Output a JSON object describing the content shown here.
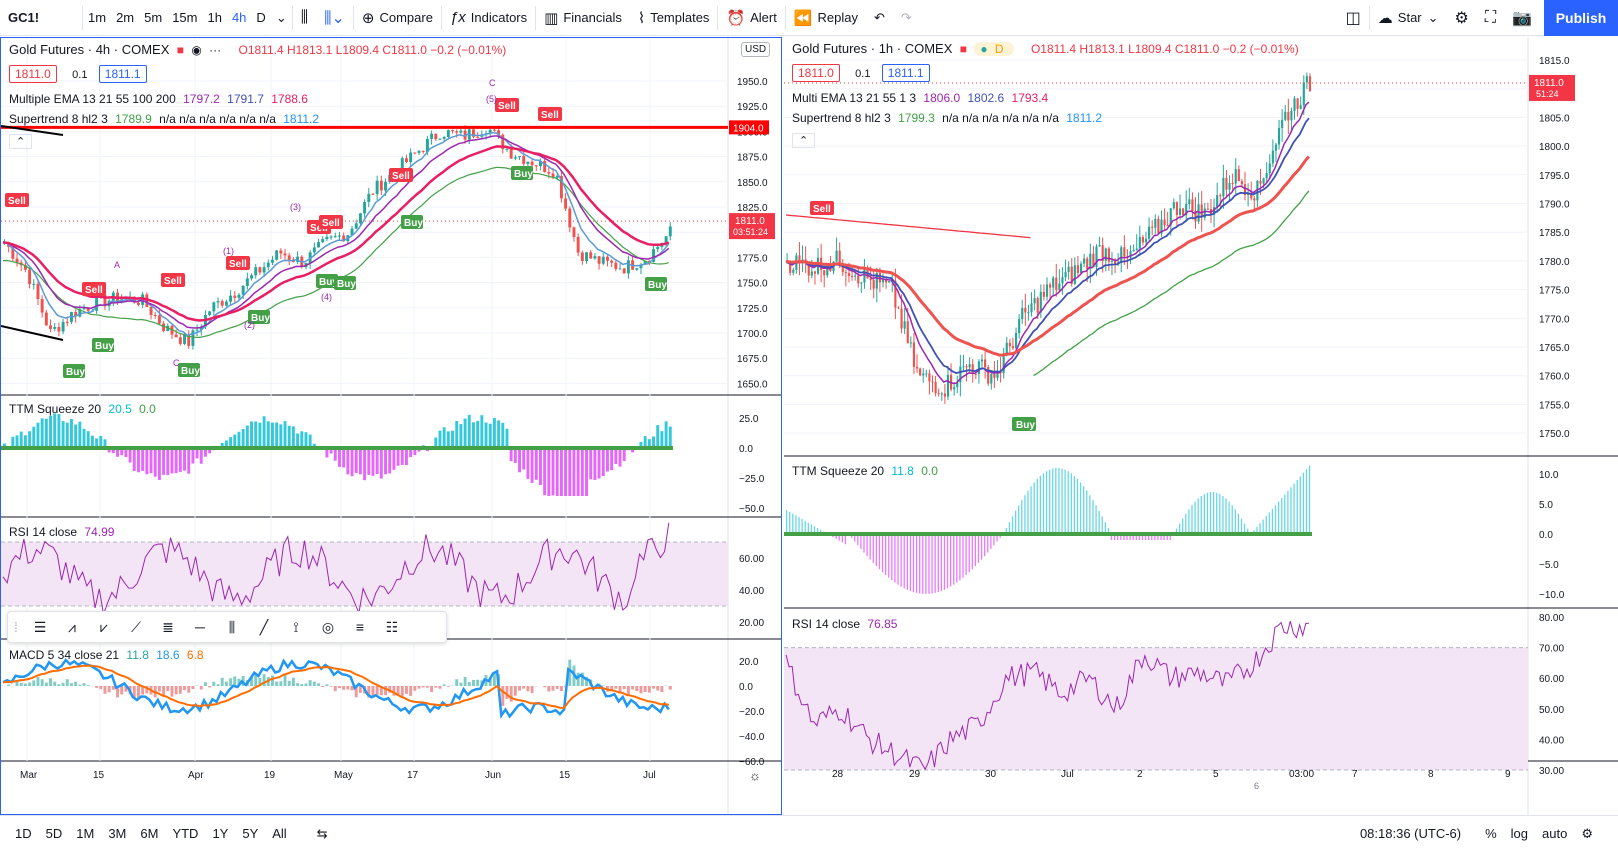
{
  "toolbar": {
    "symbol": "GC1!",
    "intervals": [
      "1m",
      "2m",
      "5m",
      "15m",
      "1h",
      "4h",
      "D"
    ],
    "active_interval": "4h",
    "compare": "Compare",
    "indicators": "Indicators",
    "financials": "Financials",
    "templates": "Templates",
    "alert": "Alert",
    "replay": "Replay",
    "star": "Star",
    "publish": "Publish"
  },
  "left_chart": {
    "title": "Gold Futures · 4h · COMEX",
    "ohlc": "O1811.4 H1813.1 L1809.4 C1811.0 −0.2 (−0.01%)",
    "bid": "1811.0",
    "spread": "0.1",
    "ask": "1811.1",
    "currency": "USD",
    "ema_label": "Multiple EMA 13 21 55 100 200",
    "ema_values": [
      "1797.2",
      "1791.7",
      "1788.6"
    ],
    "st_label": "Supertrend 8 hl2 3",
    "st_value": "1789.9",
    "st_na": "n/a n/a n/a n/a n/a n/a",
    "st_value2": "1811.2",
    "price_line": "1904.0",
    "last_price": "1811.0",
    "countdown": "03:51:24",
    "price_ticks": [
      "1950.0",
      "1925.0",
      "1900.0",
      "1875.0",
      "1850.0",
      "1825.0",
      "1800.0",
      "1775.0",
      "1750.0",
      "1725.0",
      "1700.0",
      "1675.0",
      "1650.0"
    ],
    "ttm_label": "TTM Squeeze 20",
    "ttm_value": "20.5",
    "ttm_value2": "0.0",
    "ttm_ticks": [
      "25.0",
      "0.0",
      "−25.0",
      "−50.0"
    ],
    "rsi_label": "RSI 14 close",
    "rsi_value": "74.99",
    "rsi_ticks": [
      "60.00",
      "40.00",
      "20.00"
    ],
    "macd_label": "MACD 5 34 close 21",
    "macd_values": [
      "11.8",
      "18.6",
      "6.8"
    ],
    "macd_ticks": [
      "20.0",
      "0.0",
      "−20.0",
      "−40.0",
      "−60.0"
    ],
    "time_ticks": [
      "Mar",
      "15",
      "Apr",
      "19",
      "May",
      "17",
      "Jun",
      "15",
      "Jul"
    ],
    "sell": "Sell",
    "buy": "Buy",
    "wave_labels": [
      "A",
      "(1)",
      "(2)",
      "(3)",
      "(4)",
      "(5)",
      "C",
      "C"
    ]
  },
  "right_chart": {
    "title": "Gold Futures · 1h · COMEX",
    "ohlc": "O1811.4 H1813.1 L1809.4 C1811.0 −0.2 (−0.01%)",
    "badge": "D",
    "bid": "1811.0",
    "spread": "0.1",
    "ask": "1811.1",
    "ema_label": "Multi EMA 13 21 55 1 3",
    "ema_values": [
      "1806.0",
      "1802.6",
      "1793.4"
    ],
    "st_label": "Supertrend 8 hl2 3",
    "st_value": "1799.3",
    "st_na": "n/a n/a n/a n/a n/a n/a",
    "st_value2": "1811.2",
    "last_price": "1811.0",
    "countdown": "51:24",
    "price_ticks": [
      "1815.0",
      "1810.0",
      "1805.0",
      "1800.0",
      "1795.0",
      "1790.0",
      "1785.0",
      "1780.0",
      "1775.0",
      "1770.0",
      "1765.0",
      "1760.0",
      "1755.0",
      "1750.0"
    ],
    "ttm_label": "TTM Squeeze 20",
    "ttm_value": "11.8",
    "ttm_value2": "0.0",
    "ttm_ticks": [
      "10.0",
      "5.0",
      "0.0",
      "−5.0",
      "−10.0"
    ],
    "rsi_label": "RSI 14 close",
    "rsi_value": "76.85",
    "rsi_ticks": [
      "80.00",
      "70.00",
      "60.00",
      "50.00",
      "40.00",
      "30.00"
    ],
    "time_ticks": [
      "28",
      "29",
      "30",
      "Jul",
      "2",
      "5",
      "6",
      "03:00",
      "7",
      "8",
      "9"
    ],
    "sell": "Sell",
    "buy": "Buy"
  },
  "bottom": {
    "ranges": [
      "1D",
      "5D",
      "1M",
      "3M",
      "6M",
      "YTD",
      "1Y",
      "5Y",
      "All"
    ],
    "time": "08:18:36 (UTC-6)",
    "percent": "%",
    "log": "log",
    "auto": "auto"
  },
  "colors": {
    "up": "#26a69a",
    "down": "#ef5350",
    "ema_fast": "#5b9bd5",
    "ema_mid": "#9c27b0",
    "ema_slow": "#e91e63",
    "buy": "#43a047",
    "sell": "#f23645",
    "accent": "#2962ff"
  }
}
